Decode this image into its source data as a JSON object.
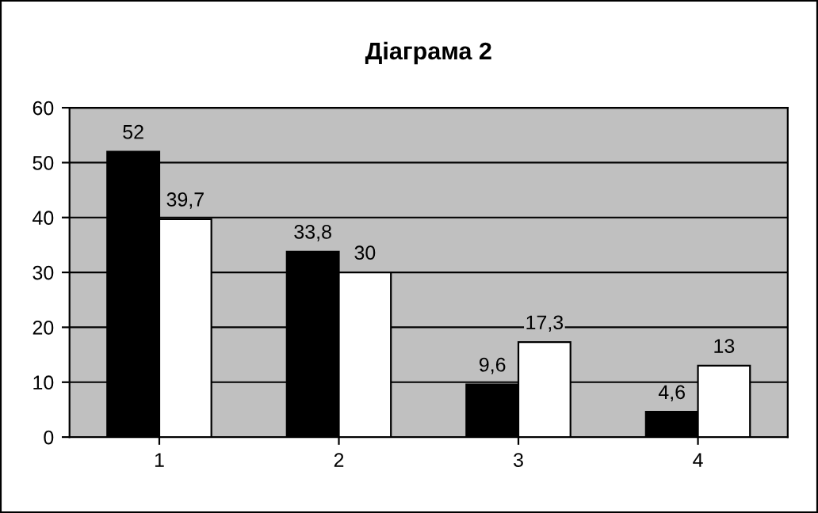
{
  "chart_data": {
    "type": "bar",
    "title": "Діаграма 2",
    "categories": [
      "1",
      "2",
      "3",
      "4"
    ],
    "series": [
      {
        "color": "#000000",
        "values": [
          52,
          33.8,
          9.6,
          4.6
        ],
        "value_labels": [
          "52",
          "33,8",
          "9,6",
          "4,6"
        ]
      },
      {
        "color": "#ffffff",
        "values": [
          39.7,
          30,
          17.3,
          13
        ],
        "value_labels": [
          "39,7",
          "30",
          "17,3",
          "13"
        ]
      }
    ],
    "ylim": [
      0,
      60
    ],
    "yticks": [
      0,
      10,
      20,
      30,
      40,
      50,
      60
    ],
    "grid": "y"
  }
}
